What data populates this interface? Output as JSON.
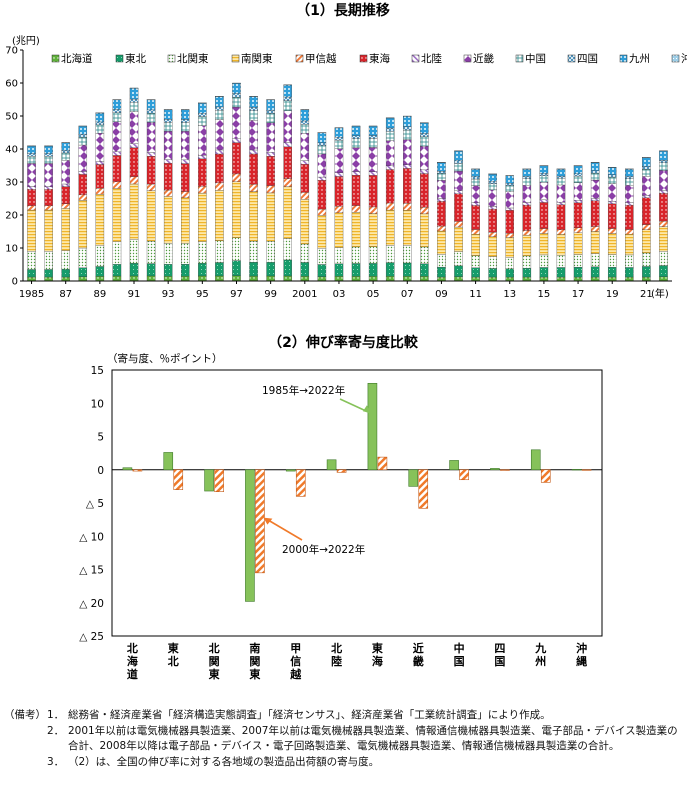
{
  "chart_data": [
    {
      "type": "bar",
      "stacked": true,
      "title": "（1）長期推移",
      "ylabel": "(兆円)",
      "xlabel_suffix": "(年)",
      "ylim": [
        0,
        70
      ],
      "yticks": [
        0,
        10,
        20,
        30,
        40,
        50,
        60,
        70
      ],
      "x_tick_labels": [
        "1985",
        "87",
        "89",
        "91",
        "93",
        "95",
        "97",
        "99",
        "2001",
        "03",
        "05",
        "07",
        "09",
        "11",
        "13",
        "15",
        "17",
        "19",
        "21"
      ],
      "categories": [
        1985,
        1986,
        1987,
        1988,
        1989,
        1990,
        1991,
        1992,
        1993,
        1994,
        1995,
        1996,
        1997,
        1998,
        1999,
        2000,
        2001,
        2002,
        2003,
        2004,
        2005,
        2006,
        2007,
        2008,
        2009,
        2010,
        2011,
        2012,
        2013,
        2014,
        2015,
        2016,
        2017,
        2018,
        2019,
        2020,
        2021,
        2022
      ],
      "totals": [
        41,
        41,
        42,
        47,
        51,
        55,
        58.5,
        55,
        52,
        52,
        54,
        56,
        60,
        56,
        55,
        59.5,
        52,
        45,
        46.5,
        47,
        47,
        49.5,
        50,
        48,
        36,
        39.5,
        34,
        32.5,
        32,
        34,
        35,
        34,
        35,
        36,
        34.5,
        34,
        37.5,
        39.5
      ],
      "series": [
        {
          "name": "北海道",
          "color": "#5fb13a",
          "pattern": "hokkaido",
          "values": [
            1.2,
            1.2,
            1.2,
            1.3,
            1.4,
            1.5,
            1.5,
            1.5,
            1.4,
            1.4,
            1.5,
            1.5,
            1.6,
            1.5,
            1.5,
            1.5,
            1.4,
            1.3,
            1.4,
            1.4,
            1.4,
            1.4,
            1.4,
            1.4,
            1.2,
            1.3,
            1.2,
            1.2,
            1.2,
            1.2,
            1.2,
            1.2,
            1.2,
            1.2,
            1.2,
            1.2,
            1.2,
            1.3
          ]
        },
        {
          "name": "東北",
          "color": "#169c6b",
          "pattern": "tohoku",
          "values": [
            2.3,
            2.3,
            2.4,
            2.7,
            3.0,
            3.5,
            3.8,
            3.7,
            3.6,
            3.6,
            3.8,
            4.0,
            4.6,
            4.2,
            4.1,
            4.8,
            4.2,
            3.7,
            3.8,
            3.9,
            3.9,
            4.1,
            4.0,
            3.8,
            3.0,
            3.3,
            2.8,
            2.6,
            2.5,
            2.7,
            2.9,
            2.9,
            3.0,
            3.1,
            3.0,
            2.9,
            3.2,
            3.4
          ]
        },
        {
          "name": "北関東",
          "color": "#7bbf6a",
          "pattern": "kitakanto",
          "values": [
            5.5,
            5.5,
            5.6,
            6.0,
            6.4,
            6.8,
            7.1,
            6.7,
            6.3,
            6.2,
            6.4,
            6.5,
            6.9,
            6.4,
            6.3,
            6.4,
            5.6,
            4.9,
            4.9,
            5.0,
            5.0,
            5.2,
            5.3,
            5.1,
            3.9,
            4.3,
            3.7,
            3.6,
            3.5,
            3.7,
            3.8,
            3.7,
            3.8,
            4.0,
            3.8,
            3.8,
            4.1,
            4.3
          ]
        },
        {
          "name": "南関東",
          "color": "#f6c343",
          "pattern": "minamikanto",
          "values": [
            12.5,
            12.5,
            12.8,
            14.5,
            15.5,
            16.0,
            16.5,
            15.0,
            14.0,
            13.5,
            14.5,
            15.0,
            17.0,
            15.0,
            14.5,
            15.5,
            13.5,
            10.0,
            10.5,
            10.5,
            10.0,
            10.5,
            10.5,
            10.0,
            7.0,
            7.5,
            6.5,
            6.0,
            6.0,
            6.3,
            6.5,
            6.3,
            6.6,
            6.7,
            6.4,
            6.3,
            7.0,
            7.5
          ]
        },
        {
          "name": "甲信越",
          "color": "#f29a70",
          "pattern": "koshinetsu",
          "values": [
            1.3,
            1.3,
            1.4,
            1.6,
            1.8,
            2.0,
            2.2,
            2.0,
            1.9,
            1.9,
            2.0,
            2.2,
            2.4,
            2.2,
            2.2,
            2.4,
            2.1,
            1.9,
            2.0,
            2.0,
            2.0,
            2.1,
            2.1,
            2.0,
            1.5,
            1.7,
            1.4,
            1.4,
            1.3,
            1.4,
            1.5,
            1.4,
            1.5,
            1.5,
            1.5,
            1.4,
            1.6,
            1.7
          ]
        },
        {
          "name": "東海",
          "color": "#d8242a",
          "pattern": "tokai",
          "values": [
            5.0,
            5.0,
            5.2,
            6.2,
            7.2,
            7.9,
            8.6,
            8.3,
            8.0,
            8.3,
            8.2,
            8.6,
            9.5,
            9.2,
            8.8,
            9.5,
            8.5,
            8.7,
            9.0,
            9.2,
            9.5,
            10.0,
            10.4,
            10.2,
            7.5,
            8.4,
            7.3,
            7.0,
            7.0,
            7.7,
            7.9,
            7.6,
            7.6,
            7.8,
            7.5,
            7.4,
            8.1,
            8.5
          ]
        },
        {
          "name": "北陸",
          "color": "#9d6fc4",
          "pattern": "hokuriku",
          "values": [
            0.8,
            0.8,
            0.8,
            0.9,
            1.0,
            1.1,
            1.2,
            1.1,
            1.1,
            1.1,
            1.1,
            1.2,
            1.3,
            1.2,
            1.2,
            1.3,
            1.1,
            1.0,
            1.1,
            1.1,
            1.1,
            1.1,
            1.1,
            1.1,
            0.8,
            0.9,
            0.8,
            0.8,
            0.7,
            0.8,
            0.8,
            0.8,
            0.8,
            0.8,
            0.8,
            0.8,
            0.8,
            0.9
          ]
        },
        {
          "name": "近畿",
          "color": "#8a3fa6",
          "pattern": "kinki",
          "values": [
            7.0,
            7.0,
            7.2,
            8.0,
            8.5,
            9.0,
            9.5,
            9.0,
            8.5,
            8.5,
            8.8,
            9.0,
            9.5,
            9.0,
            8.8,
            9.5,
            8.3,
            7.0,
            7.3,
            7.2,
            7.3,
            7.5,
            7.5,
            7.2,
            5.5,
            6.0,
            5.2,
            5.0,
            4.9,
            5.2,
            5.3,
            5.2,
            5.3,
            5.5,
            5.3,
            5.2,
            5.7,
            6.0
          ]
        },
        {
          "name": "中国",
          "color": "#2d8a8c",
          "pattern": "chugoku",
          "values": [
            2.2,
            2.2,
            2.2,
            2.4,
            2.5,
            2.7,
            2.8,
            2.7,
            2.6,
            2.6,
            2.7,
            2.8,
            3.0,
            2.9,
            2.8,
            3.0,
            2.7,
            2.5,
            2.6,
            2.7,
            2.7,
            2.8,
            2.9,
            2.8,
            2.1,
            2.3,
            2.0,
            1.9,
            1.9,
            2.0,
            2.0,
            2.0,
            2.0,
            2.1,
            2.0,
            2.0,
            2.2,
            2.3
          ]
        },
        {
          "name": "四国",
          "color": "#6fb8d9",
          "pattern": "shikoku",
          "values": [
            0.8,
            0.8,
            0.8,
            0.9,
            0.9,
            1.0,
            1.0,
            1.0,
            0.9,
            0.9,
            1.0,
            1.0,
            1.1,
            1.0,
            1.0,
            1.1,
            1.0,
            0.9,
            0.9,
            0.9,
            0.9,
            1.0,
            1.0,
            1.0,
            0.7,
            0.8,
            0.7,
            0.7,
            0.7,
            0.7,
            0.7,
            0.7,
            0.7,
            0.7,
            0.7,
            0.7,
            0.8,
            0.8
          ]
        },
        {
          "name": "九州",
          "color": "#2e9ed9",
          "pattern": "kyushu",
          "values": [
            2.3,
            2.3,
            2.3,
            2.4,
            2.7,
            2.9,
            3.2,
            3.0,
            2.9,
            2.9,
            3.0,
            3.1,
            3.1,
            3.3,
            3.1,
            3.6,
            3.4,
            3.0,
            2.8,
            2.9,
            2.8,
            3.0,
            3.1,
            3.2,
            2.6,
            3.0,
            2.3,
            2.2,
            2.3,
            2.2,
            2.3,
            2.1,
            2.4,
            2.5,
            2.2,
            2.2,
            2.7,
            2.8
          ]
        },
        {
          "name": "沖縄",
          "color": "#9fcfe8",
          "pattern": "okinawa",
          "values": [
            0.1,
            0.1,
            0.1,
            0.1,
            0.1,
            0.1,
            0.1,
            0.1,
            0.1,
            0.1,
            0.1,
            0.1,
            0.1,
            0.1,
            0.1,
            0.1,
            0.1,
            0.1,
            0.1,
            0.1,
            0.1,
            0.1,
            0.1,
            0.1,
            0.1,
            0.1,
            0.1,
            0.1,
            0.1,
            0.1,
            0.1,
            0.1,
            0.1,
            0.1,
            0.1,
            0.1,
            0.1,
            0.1
          ]
        }
      ]
    },
    {
      "type": "bar",
      "title": "（2）伸び率寄与度比較",
      "ylabel": "（寄与度、％ポイント）",
      "ylim": [
        -25,
        15
      ],
      "yticks": [
        15,
        10,
        5,
        0,
        -5,
        -10,
        -15,
        -20,
        -25
      ],
      "ytick_labels": [
        "15",
        "10",
        "5",
        "0",
        "△ 5",
        "△ 10",
        "△ 15",
        "△ 20",
        "△ 25"
      ],
      "categories": [
        "北海道",
        "東北",
        "北関東",
        "南関東",
        "甲信越",
        "北陸",
        "東海",
        "近畿",
        "中国",
        "四国",
        "九州",
        "沖縄"
      ],
      "series": [
        {
          "name": "1985年→2022年",
          "color": "#86c25a",
          "values": [
            0.3,
            2.6,
            -3.2,
            -19.8,
            -0.2,
            1.5,
            13.0,
            -2.5,
            1.4,
            0.2,
            3.0,
            0.05
          ]
        },
        {
          "name": "2000年→2022年",
          "color": "#f07a2a",
          "values": [
            -0.2,
            -3.0,
            -3.3,
            -15.5,
            -4.0,
            -0.4,
            1.9,
            -5.8,
            -1.5,
            -0.1,
            -1.9,
            -0.05
          ]
        }
      ],
      "annotations": [
        {
          "text": "1985年→2022年",
          "points_to": "東海"
        },
        {
          "text": "2000年→2022年",
          "points_to": "南関東"
        }
      ]
    }
  ],
  "notes": {
    "lead": "（備考）",
    "items": [
      {
        "num": "1．",
        "text": "総務省・経済産業省「経済構造実態調査」「経済センサス」、経済産業省「工業統計調査」により作成。"
      },
      {
        "num": "2．",
        "text": "2001年以前は電気機械器具製造業、2007年以前は電気機械器具製造業、情報通信機械器具製造業、電子部品・デバイス製造業の合計、2008年以降は電子部品・デバイス・電子回路製造業、電気機械器具製造業、情報通信機械器具製造業の合計。"
      },
      {
        "num": "3．",
        "text": "（2）は、全国の伸び率に対する各地域の製造品出荷額の寄与度。"
      }
    ]
  }
}
